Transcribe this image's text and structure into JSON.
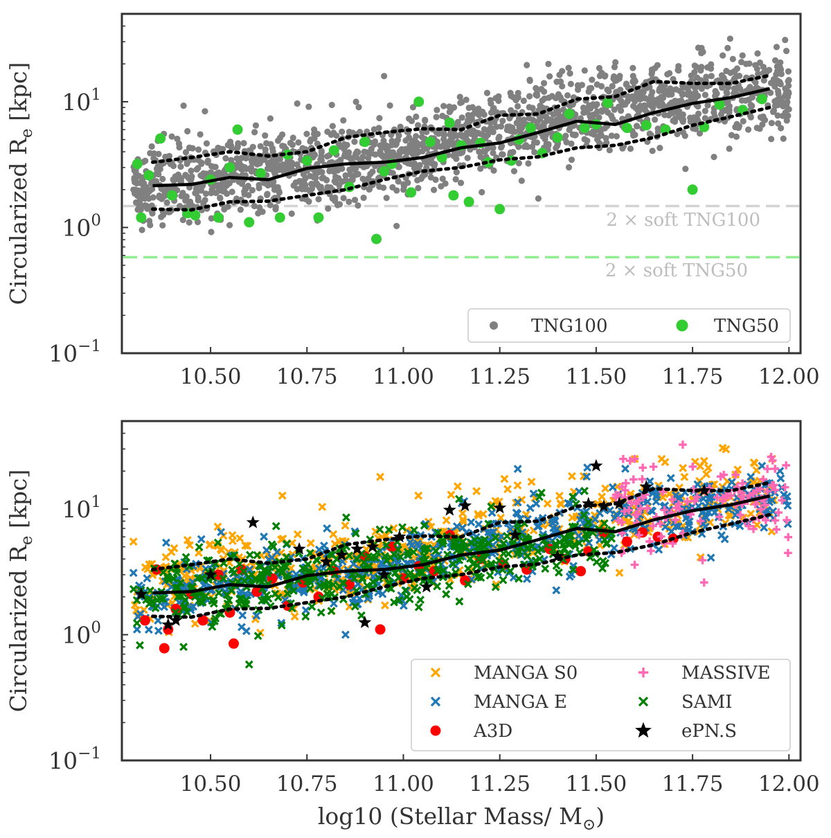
{
  "chart_data": [
    {
      "type": "scatter",
      "panel": "top",
      "title": "",
      "xlabel": "",
      "ylabel": "Circularized R",
      "ylabel_sub": "e",
      "ylabel_unit": " [kpc]",
      "xscale": "linear",
      "yscale": "log",
      "xlim": [
        10.27,
        12.03
      ],
      "ylim": [
        0.1,
        50
      ],
      "xticks": [
        10.5,
        10.75,
        11.0,
        11.25,
        11.5,
        11.75,
        12.0
      ],
      "xtick_labels": [
        "10.50",
        "10.75",
        "11.00",
        "11.25",
        "11.50",
        "11.75",
        "12.00"
      ],
      "ytick_labels": [
        {
          "base": "10",
          "exp": "−1",
          "value": 0.1
        },
        {
          "base": "10",
          "exp": "0",
          "value": 1
        },
        {
          "base": "10",
          "exp": "1",
          "value": 10
        }
      ],
      "legend": {
        "placement": "bottom-right",
        "columns": 2,
        "entries": [
          {
            "label": "TNG100",
            "marker": "dot-small",
            "color": "#808080"
          },
          {
            "label": "TNG50",
            "marker": "dot",
            "color": "#33cc33"
          }
        ]
      },
      "reference_lines": [
        {
          "label": "2 × soft TNG100",
          "y": 1.48,
          "color": "#d3d3d3",
          "style": "dashed"
        },
        {
          "label": "2 × soft TNG50",
          "y": 0.58,
          "color": "#90ee90",
          "style": "dashed"
        }
      ],
      "median_line": {
        "x": [
          10.35,
          10.45,
          10.55,
          10.65,
          10.75,
          10.85,
          10.95,
          11.05,
          11.15,
          11.25,
          11.35,
          11.45,
          11.55,
          11.65,
          11.75,
          11.85,
          11.95
        ],
        "y": [
          2.15,
          2.2,
          2.5,
          2.4,
          2.95,
          3.2,
          3.3,
          3.6,
          4.3,
          4.7,
          5.7,
          7.0,
          6.6,
          8.2,
          9.7,
          10.8,
          12.7
        ]
      },
      "upper_line": {
        "x": [
          10.35,
          10.45,
          10.55,
          10.65,
          10.75,
          10.85,
          10.95,
          11.05,
          11.15,
          11.25,
          11.35,
          11.45,
          11.55,
          11.65,
          11.75,
          11.85,
          11.95
        ],
        "y": [
          3.3,
          3.6,
          4.0,
          3.7,
          4.0,
          5.2,
          5.7,
          6.1,
          6.0,
          7.8,
          8.0,
          10.5,
          11.0,
          14.5,
          14.0,
          14.0,
          16.2
        ]
      },
      "lower_line": {
        "x": [
          10.35,
          10.45,
          10.55,
          10.65,
          10.75,
          10.85,
          10.95,
          11.05,
          11.15,
          11.25,
          11.35,
          11.45,
          11.55,
          11.65,
          11.75,
          11.85,
          11.95
        ],
        "y": [
          1.4,
          1.38,
          1.6,
          1.62,
          1.8,
          2.0,
          2.4,
          2.8,
          3.0,
          3.45,
          3.65,
          4.3,
          4.5,
          5.2,
          6.5,
          7.6,
          9.0
        ]
      },
      "series": [
        {
          "name": "TNG100",
          "color": "#808080",
          "marker": "dot-small",
          "n_points": 1800,
          "x_range": [
            10.3,
            12.0
          ],
          "trend": {
            "x": [
              10.3,
              11.0,
              11.95
            ],
            "y": [
              2.1,
              3.6,
              12.7
            ]
          },
          "scatter_dex": 0.16,
          "notable": [
            {
              "x": 10.43,
              "y": 9.3
            },
            {
              "x": 10.95,
              "y": 16.0
            },
            {
              "x": 11.35,
              "y": 1.7
            },
            {
              "x": 11.99,
              "y": 31.0
            }
          ]
        },
        {
          "name": "TNG50",
          "color": "#33cc33",
          "marker": "dot",
          "x": [
            10.31,
            10.32,
            10.34,
            10.37,
            10.4,
            10.44,
            10.46,
            10.5,
            10.52,
            10.55,
            10.57,
            10.6,
            10.63,
            10.68,
            10.7,
            10.75,
            10.78,
            10.82,
            10.86,
            10.9,
            10.93,
            10.95,
            10.97,
            11.02,
            11.04,
            11.07,
            11.1,
            11.12,
            11.13,
            11.15,
            11.17,
            11.2,
            11.22,
            11.25,
            11.28,
            11.3,
            11.33,
            11.36,
            11.4,
            11.43,
            11.47,
            11.5,
            11.53,
            11.58,
            11.63,
            11.68,
            11.75,
            11.78,
            11.82,
            11.88,
            11.93
          ],
          "y": [
            3.2,
            1.2,
            2.6,
            5.1,
            1.8,
            1.3,
            1.25,
            2.4,
            1.2,
            3.0,
            6.0,
            1.1,
            2.7,
            1.2,
            3.8,
            3.4,
            1.2,
            4.1,
            2.1,
            4.8,
            0.81,
            2.8,
            3.2,
            1.9,
            10.0,
            4.8,
            3.6,
            6.8,
            1.8,
            4.5,
            1.6,
            4.7,
            3.3,
            1.4,
            3.4,
            5.0,
            6.2,
            3.9,
            5.2,
            8.0,
            6.2,
            6.6,
            9.8,
            6.2,
            6.5,
            6.0,
            2.0,
            6.3,
            9.5,
            8.6,
            10.5
          ]
        }
      ]
    },
    {
      "type": "scatter",
      "panel": "bottom",
      "title": "",
      "xlabel": "log10 (Stellar Mass/ M",
      "xlabel_sub": "⊙",
      "xlabel_end": ")",
      "ylabel": "Circularized R",
      "ylabel_sub": "e",
      "ylabel_unit": " [kpc]",
      "xscale": "linear",
      "yscale": "log",
      "xlim": [
        10.27,
        12.03
      ],
      "ylim": [
        0.1,
        50
      ],
      "xticks": [
        10.5,
        10.75,
        11.0,
        11.25,
        11.5,
        11.75,
        12.0
      ],
      "xtick_labels": [
        "10.50",
        "10.75",
        "11.00",
        "11.25",
        "11.50",
        "11.75",
        "12.00"
      ],
      "ytick_labels": [
        {
          "base": "10",
          "exp": "−1",
          "value": 0.1
        },
        {
          "base": "10",
          "exp": "0",
          "value": 1
        },
        {
          "base": "10",
          "exp": "1",
          "value": 10
        }
      ],
      "legend": {
        "placement": "bottom-right",
        "columns": 2,
        "entries": [
          {
            "label": "MANGA S0",
            "marker": "x",
            "color": "#ffa500"
          },
          {
            "label": "MANGA E",
            "marker": "x",
            "color": "#1f77b4"
          },
          {
            "label": "A3D",
            "marker": "dot",
            "color": "#ff0000"
          },
          {
            "label": "MASSIVE",
            "marker": "plus",
            "color": "#ff69b4"
          },
          {
            "label": "SAMI",
            "marker": "x",
            "color": "#008000"
          },
          {
            "label": "ePN.S",
            "marker": "star",
            "color": "#000000"
          }
        ]
      },
      "median_line": {
        "x": [
          10.35,
          10.45,
          10.55,
          10.65,
          10.75,
          10.85,
          10.95,
          11.05,
          11.15,
          11.25,
          11.35,
          11.45,
          11.55,
          11.65,
          11.75,
          11.85,
          11.95
        ],
        "y": [
          2.15,
          2.2,
          2.5,
          2.4,
          2.95,
          3.2,
          3.3,
          3.6,
          4.3,
          4.7,
          5.7,
          7.0,
          6.6,
          8.2,
          9.7,
          10.8,
          12.7
        ]
      },
      "upper_line": {
        "x": [
          10.35,
          10.45,
          10.55,
          10.65,
          10.75,
          10.85,
          10.95,
          11.05,
          11.15,
          11.25,
          11.35,
          11.45,
          11.55,
          11.65,
          11.75,
          11.85,
          11.95
        ],
        "y": [
          3.3,
          3.6,
          4.0,
          3.7,
          4.0,
          5.2,
          5.7,
          6.1,
          6.0,
          7.8,
          8.0,
          10.5,
          11.0,
          14.5,
          14.0,
          14.0,
          16.2
        ]
      },
      "lower_line": {
        "x": [
          10.35,
          10.45,
          10.55,
          10.65,
          10.75,
          10.85,
          10.95,
          11.05,
          11.15,
          11.25,
          11.35,
          11.45,
          11.55,
          11.65,
          11.75,
          11.85,
          11.95
        ],
        "y": [
          1.4,
          1.38,
          1.6,
          1.62,
          1.8,
          2.0,
          2.4,
          2.8,
          3.0,
          3.45,
          3.65,
          4.3,
          4.5,
          5.2,
          6.5,
          7.6,
          9.0
        ]
      },
      "series": [
        {
          "name": "MANGA S0",
          "color": "#ffa500",
          "marker": "x",
          "n_points": 550,
          "x_range": [
            10.3,
            11.97
          ],
          "trend": {
            "x": [
              10.3,
              11.0,
              11.95
            ],
            "y": [
              2.6,
              4.0,
              13.0
            ]
          },
          "scatter_dex": 0.17,
          "notable": [
            {
              "x": 10.94,
              "y": 18.0
            },
            {
              "x": 11.6,
              "y": 25.0
            },
            {
              "x": 10.3,
              "y": 5.5
            }
          ]
        },
        {
          "name": "MANGA E",
          "color": "#1f77b4",
          "marker": "x",
          "n_points": 600,
          "x_range": [
            10.3,
            12.0
          ],
          "trend": {
            "x": [
              10.3,
              11.0,
              11.95
            ],
            "y": [
              1.8,
              3.4,
              12.5
            ]
          },
          "scatter_dex": 0.15,
          "notable": [
            {
              "x": 11.93,
              "y": 22.0
            },
            {
              "x": 10.85,
              "y": 1.0
            }
          ]
        },
        {
          "name": "A3D",
          "color": "#ff0000",
          "marker": "dot",
          "x": [
            10.33,
            10.36,
            10.38,
            10.39,
            10.41,
            10.45,
            10.48,
            10.52,
            10.55,
            10.56,
            10.58,
            10.62,
            10.66,
            10.7,
            10.74,
            10.78,
            10.82,
            10.86,
            10.9,
            10.94,
            10.97,
            11.0,
            11.04,
            11.08,
            11.12,
            11.16,
            11.2,
            11.26,
            11.32,
            11.38,
            11.42,
            11.46,
            11.48,
            11.52,
            11.58,
            11.62,
            11.66,
            11.7
          ],
          "y": [
            1.3,
            3.3,
            0.78,
            1.1,
            1.6,
            2.1,
            1.3,
            3.0,
            1.5,
            0.85,
            3.3,
            2.2,
            2.8,
            1.7,
            2.6,
            2.0,
            3.2,
            2.5,
            4.2,
            1.1,
            5.0,
            2.8,
            3.5,
            3.2,
            6.2,
            2.7,
            4.0,
            3.6,
            3.3,
            4.8,
            4.0,
            3.2,
            4.6,
            6.5,
            5.5,
            6.5,
            6.0,
            5.8
          ]
        },
        {
          "name": "MASSIVE",
          "color": "#ff69b4",
          "marker": "plus",
          "n_points": 120,
          "x_range": [
            11.55,
            12.0
          ],
          "trend": {
            "x": [
              11.55,
              11.95
            ],
            "y": [
              9.5,
              12.5
            ]
          },
          "scatter_dex": 0.17,
          "notable": [
            {
              "x": 11.57,
              "y": 25.0
            },
            {
              "x": 11.6,
              "y": 25.0
            },
            {
              "x": 11.78,
              "y": 2.6
            },
            {
              "x": 11.6,
              "y": 3.6
            }
          ]
        },
        {
          "name": "SAMI",
          "color": "#008000",
          "marker": "x",
          "n_points": 450,
          "x_range": [
            10.3,
            11.55
          ],
          "trend": {
            "x": [
              10.3,
              11.0,
              11.55
            ],
            "y": [
              2.0,
              3.3,
              6.0
            ]
          },
          "scatter_dex": 0.15,
          "notable": [
            {
              "x": 10.6,
              "y": 0.58
            },
            {
              "x": 10.67,
              "y": 7.3
            },
            {
              "x": 10.43,
              "y": 0.8
            }
          ]
        },
        {
          "name": "ePN.S",
          "color": "#000000",
          "marker": "star",
          "x": [
            10.32,
            10.39,
            10.41,
            10.5,
            10.61,
            10.73,
            10.8,
            10.84,
            10.88,
            10.9,
            10.92,
            10.95,
            10.99,
            11.06,
            11.12,
            11.16,
            11.25,
            11.29,
            11.4,
            11.48,
            11.5,
            11.52,
            11.56,
            11.63,
            11.78
          ],
          "y": [
            2.1,
            1.2,
            1.3,
            3.0,
            7.8,
            4.8,
            3.8,
            4.3,
            4.8,
            1.25,
            5.0,
            3.0,
            6.0,
            2.4,
            9.8,
            10.6,
            10.2,
            6.2,
            4.2,
            11.0,
            22.0,
            10.5,
            11.0,
            15.0,
            14.0
          ]
        }
      ]
    }
  ]
}
